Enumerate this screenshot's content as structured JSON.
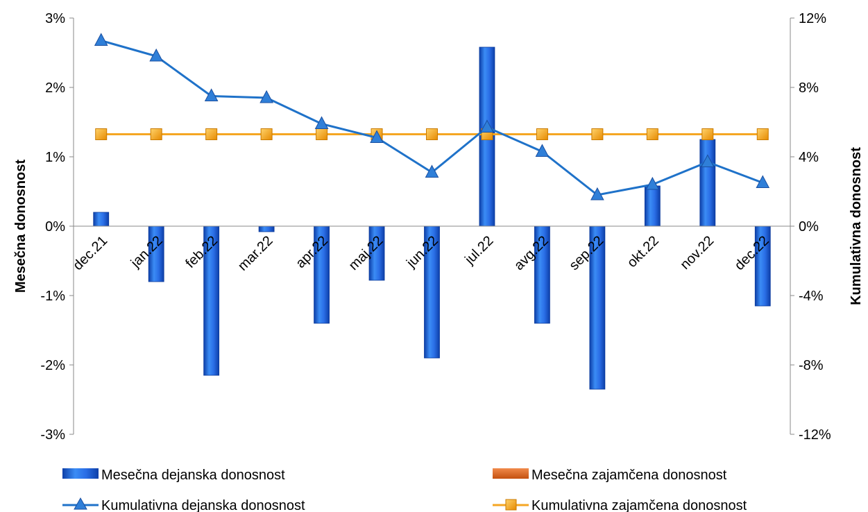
{
  "chart_data": {
    "type": "bar+line",
    "categories": [
      "dec.21",
      "jan.22",
      "feb.22",
      "mar.22",
      "apr.22",
      "maj.22",
      "jun.22",
      "jul.22",
      "avg.22",
      "sep.22",
      "okt.22",
      "nov.22",
      "dec.22"
    ],
    "ylabel_left": "Mesečna donosnost",
    "ylabel_right": "Kumulativna donosnost",
    "ylim_left": [
      -3,
      3
    ],
    "ylim_right": [
      -12,
      12
    ],
    "yticks_left": [
      "3%",
      "2%",
      "1%",
      "0%",
      "-1%",
      "-2%",
      "-3%"
    ],
    "yticks_right": [
      "12%",
      "8%",
      "4%",
      "0%",
      "-4%",
      "-8%",
      "-12%"
    ],
    "grid": false,
    "legend_position": "bottom",
    "series": [
      {
        "name": "Mesečna dejanska donosnost",
        "type": "bar",
        "axis": "left",
        "color": "#1f5fd6",
        "values": [
          0.2,
          -0.8,
          -2.15,
          -0.08,
          -1.4,
          -0.78,
          -1.9,
          2.58,
          -1.4,
          -2.35,
          0.58,
          1.25,
          -1.15
        ]
      },
      {
        "name": "Mesečna zajamčena donosnost",
        "type": "bar",
        "axis": "left",
        "color": "#e0621a",
        "values": [
          0,
          0,
          0,
          0,
          0,
          0,
          0,
          0,
          0,
          0,
          0,
          0,
          0
        ]
      },
      {
        "name": "Kumulativna dejanska donosnost",
        "type": "line",
        "axis": "right",
        "marker": "triangle",
        "color": "#1f72c9",
        "values": [
          10.7,
          9.8,
          7.5,
          7.4,
          5.9,
          5.1,
          3.1,
          5.7,
          4.3,
          1.8,
          2.4,
          3.7,
          2.5
        ]
      },
      {
        "name": "Kumulativna zajamčena donosnost",
        "type": "line",
        "axis": "right",
        "marker": "square",
        "color": "#f5a623",
        "values": [
          5.3,
          5.3,
          5.3,
          5.3,
          5.3,
          5.3,
          5.3,
          5.3,
          5.3,
          5.3,
          5.3,
          5.3,
          5.3
        ]
      }
    ]
  }
}
